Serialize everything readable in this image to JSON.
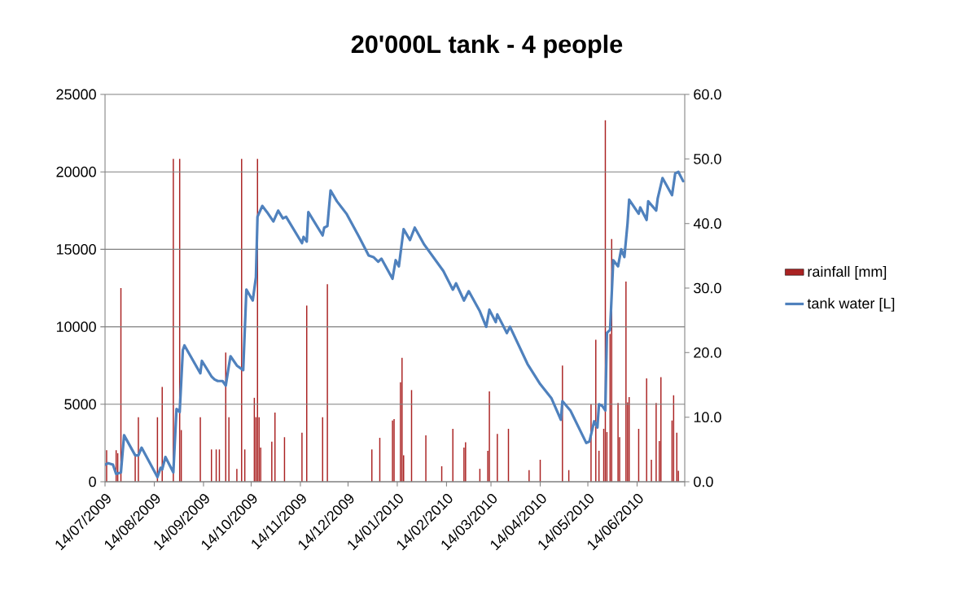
{
  "chart_data": {
    "type": "bar",
    "title": "20'000L tank - 4 people",
    "xlim": [
      "2009-07-14",
      "2010-07-14"
    ],
    "xticks": [
      {
        "value": "2009-07-14",
        "label": "14/07/2009"
      },
      {
        "value": "2009-08-14",
        "label": "14/08/2009"
      },
      {
        "value": "2009-09-14",
        "label": "14/09/2009"
      },
      {
        "value": "2009-10-14",
        "label": "14/10/2009"
      },
      {
        "value": "2009-11-14",
        "label": "14/11/2009"
      },
      {
        "value": "2009-12-14",
        "label": "14/12/2009"
      },
      {
        "value": "2010-01-14",
        "label": "14/01/2010"
      },
      {
        "value": "2010-02-14",
        "label": "14/02/2010"
      },
      {
        "value": "2010-03-14",
        "label": "14/03/2010"
      },
      {
        "value": "2010-04-14",
        "label": "14/04/2010"
      },
      {
        "value": "2010-05-14",
        "label": "14/05/2010"
      },
      {
        "value": "2010-06-14",
        "label": "14/06/2010"
      },
      {
        "value": "2010-07-14",
        "label": null
      }
    ],
    "ylim": [
      0,
      25000
    ],
    "yticks": [
      0,
      5000,
      10000,
      15000,
      20000,
      25000
    ],
    "y2lim": [
      0,
      60
    ],
    "y2ticks": [
      {
        "value": 0,
        "label": "0.0"
      },
      {
        "value": 10,
        "label": "10.0"
      },
      {
        "value": 20,
        "label": "20.0"
      },
      {
        "value": 30,
        "label": "30.0"
      },
      {
        "value": 40,
        "label": "40.0"
      },
      {
        "value": 50,
        "label": "50.0"
      },
      {
        "value": 60,
        "label": "60.0"
      }
    ],
    "grid": "y",
    "legend": "right",
    "series": [
      {
        "name": "rainfall [mm]",
        "axis": "y2",
        "color": "#aa2222",
        "x": [
          "2009-07-15",
          "2009-07-21",
          "2009-07-22",
          "2009-07-24",
          "2009-08-02",
          "2009-08-04",
          "2009-08-16",
          "2009-08-19",
          "2009-08-26",
          "2009-08-30",
          "2009-08-31",
          "2009-09-12",
          "2009-09-19",
          "2009-09-22",
          "2009-09-24",
          "2009-09-28",
          "2009-09-30",
          "2009-10-05",
          "2009-10-08",
          "2009-10-10",
          "2009-10-16",
          "2009-10-17",
          "2009-10-18",
          "2009-10-19",
          "2009-10-20",
          "2009-10-27",
          "2009-10-29",
          "2009-11-04",
          "2009-11-15",
          "2009-11-18",
          "2009-11-28",
          "2009-12-01",
          "2009-12-29",
          "2010-01-03",
          "2010-01-11",
          "2010-01-12",
          "2010-01-16",
          "2010-01-17",
          "2010-01-18",
          "2010-01-23",
          "2010-02-01",
          "2010-02-11",
          "2010-02-18",
          "2010-02-25",
          "2010-02-26",
          "2010-03-07",
          "2010-03-12",
          "2010-03-13",
          "2010-03-18",
          "2010-03-25",
          "2010-04-07",
          "2010-04-14",
          "2010-04-28",
          "2010-05-02",
          "2010-05-16",
          "2010-05-19",
          "2010-05-21",
          "2010-05-24",
          "2010-05-25",
          "2010-05-26",
          "2010-05-28",
          "2010-05-29",
          "2010-06-02",
          "2010-06-03",
          "2010-06-07",
          "2010-06-08",
          "2010-06-09",
          "2010-06-15",
          "2010-06-20",
          "2010-06-23",
          "2010-06-26",
          "2010-06-28",
          "2010-06-29",
          "2010-07-06",
          "2010-07-07",
          "2010-07-09",
          "2010-07-10"
        ],
        "values": [
          4.9,
          4.9,
          4.4,
          30.0,
          4.0,
          10.0,
          10.0,
          14.7,
          50.0,
          50.0,
          8.0,
          10.0,
          5.0,
          5.0,
          5.0,
          20.0,
          10.0,
          2.0,
          50.0,
          5.0,
          13.0,
          10.0,
          50.0,
          10.0,
          5.3,
          6.2,
          10.7,
          6.9,
          7.6,
          27.3,
          10.0,
          30.6,
          5.0,
          6.8,
          9.5,
          9.7,
          15.4,
          19.2,
          4.1,
          14.2,
          7.2,
          2.4,
          8.2,
          5.3,
          6.1,
          2.0,
          4.8,
          14.0,
          7.4,
          8.2,
          1.8,
          3.4,
          18.0,
          1.8,
          12.0,
          22.0,
          4.8,
          8.2,
          56.0,
          7.7,
          22.9,
          37.6,
          12.2,
          6.9,
          31.0,
          12.3,
          13.1,
          8.2,
          16.0,
          3.4,
          12.2,
          6.3,
          16.2,
          9.5,
          13.4,
          7.6,
          1.7
        ]
      },
      {
        "name": "tank water [L]",
        "type": "line",
        "axis": "y",
        "color": "#4f81bd",
        "x": [
          "2009-07-14",
          "2009-07-16",
          "2009-07-19",
          "2009-07-21",
          "2009-07-24",
          "2009-07-26",
          "2009-08-02",
          "2009-08-04",
          "2009-08-06",
          "2009-08-16",
          "2009-08-18",
          "2009-08-19",
          "2009-08-21",
          "2009-08-26",
          "2009-08-28",
          "2009-08-30",
          "2009-09-01",
          "2009-09-02",
          "2009-09-12",
          "2009-09-13",
          "2009-09-19",
          "2009-09-21",
          "2009-09-23",
          "2009-09-26",
          "2009-09-28",
          "2009-09-30",
          "2009-10-01",
          "2009-10-05",
          "2009-10-09",
          "2009-10-11",
          "2009-10-15",
          "2009-10-17",
          "2009-10-18",
          "2009-10-21",
          "2009-10-24",
          "2009-10-28",
          "2009-10-31",
          "2009-11-03",
          "2009-11-05",
          "2009-11-15",
          "2009-11-16",
          "2009-11-18",
          "2009-11-19",
          "2009-11-28",
          "2009-11-29",
          "2009-12-01",
          "2009-12-03",
          "2009-12-07",
          "2009-12-13",
          "2009-12-21",
          "2009-12-27",
          "2009-12-30",
          "2010-01-02",
          "2010-01-04",
          "2010-01-11",
          "2010-01-13",
          "2010-01-15",
          "2010-01-18",
          "2010-01-22",
          "2010-01-25",
          "2010-01-31",
          "2010-02-12",
          "2010-02-18",
          "2010-02-20",
          "2010-02-25",
          "2010-02-28",
          "2010-03-07",
          "2010-03-11",
          "2010-03-13",
          "2010-03-17",
          "2010-03-18",
          "2010-03-24",
          "2010-03-26",
          "2010-04-06",
          "2010-04-14",
          "2010-04-21",
          "2010-04-27",
          "2010-04-28",
          "2010-05-03",
          "2010-05-13",
          "2010-05-15",
          "2010-05-18",
          "2010-05-20",
          "2010-05-21",
          "2010-05-23",
          "2010-05-25",
          "2010-05-26",
          "2010-05-28",
          "2010-05-30",
          "2010-06-02",
          "2010-06-04",
          "2010-06-06",
          "2010-06-08",
          "2010-06-09",
          "2010-06-15",
          "2010-06-16",
          "2010-06-20",
          "2010-06-21",
          "2010-06-26",
          "2010-06-27",
          "2010-06-30",
          "2010-07-06",
          "2010-07-08",
          "2010-07-10",
          "2010-07-13"
        ],
        "values": [
          1100,
          1200,
          1100,
          500,
          600,
          3000,
          1700,
          1700,
          2200,
          300,
          900,
          800,
          1600,
          600,
          4700,
          4500,
          8500,
          8800,
          7000,
          7800,
          6800,
          6600,
          6500,
          6500,
          6200,
          7500,
          8100,
          7500,
          7200,
          12400,
          11700,
          13200,
          17100,
          17800,
          17400,
          16800,
          17500,
          17000,
          17100,
          15400,
          15800,
          15500,
          17400,
          15900,
          16400,
          16500,
          18800,
          18100,
          17300,
          15800,
          14600,
          14500,
          14200,
          14400,
          13100,
          14300,
          13900,
          16300,
          15600,
          16400,
          15300,
          13600,
          12400,
          12800,
          11700,
          12300,
          11000,
          10000,
          11100,
          10300,
          10800,
          9600,
          10000,
          7600,
          6300,
          5400,
          4000,
          5200,
          4600,
          2500,
          2600,
          3900,
          3500,
          5000,
          4900,
          4600,
          9600,
          9800,
          14300,
          13900,
          15000,
          14500,
          16700,
          18200,
          17300,
          17700,
          16900,
          18100,
          17500,
          18300,
          19600,
          18500,
          19900,
          20000,
          19400
        ]
      }
    ]
  }
}
